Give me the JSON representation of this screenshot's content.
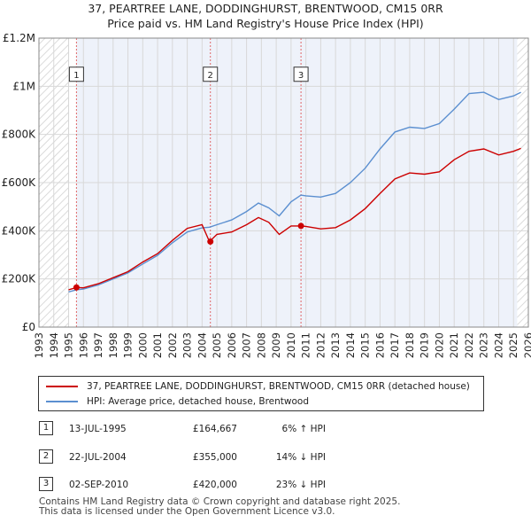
{
  "title_line1": "37, PEARTREE LANE, DODDINGHURST, BRENTWOOD, CM15 0RR",
  "title_line2": "Price paid vs. HM Land Registry's House Price Index (HPI)",
  "chart_data": {
    "type": "line",
    "xlim": [
      1993,
      2026
    ],
    "ylim": [
      0,
      1200000
    ],
    "y_ticks": [
      {
        "value": 0,
        "label": "£0"
      },
      {
        "value": 200000,
        "label": "£200K"
      },
      {
        "value": 400000,
        "label": "£400K"
      },
      {
        "value": 600000,
        "label": "£600K"
      },
      {
        "value": 800000,
        "label": "£800K"
      },
      {
        "value": 1000000,
        "label": "£1M"
      },
      {
        "value": 1200000,
        "label": "£1.2M"
      }
    ],
    "x_ticks": [
      "1993",
      "1994",
      "1995",
      "1996",
      "1997",
      "1998",
      "1999",
      "2000",
      "2001",
      "2002",
      "2003",
      "2004",
      "2005",
      "2006",
      "2007",
      "2008",
      "2009",
      "2010",
      "2011",
      "2012",
      "2013",
      "2014",
      "2015",
      "2016",
      "2017",
      "2018",
      "2019",
      "2020",
      "2021",
      "2022",
      "2023",
      "2024",
      "2025",
      "2026"
    ],
    "hatch_before": 1995.0,
    "hatch_after": 2025.25,
    "series": [
      {
        "name": "37, PEARTREE LANE, DODDINGHURST, BRENTWOOD, CM15 0RR (detached house)",
        "color": "#cc0000",
        "points": [
          [
            1995.0,
            155000
          ],
          [
            1995.53,
            164667
          ],
          [
            1996,
            163000
          ],
          [
            1997,
            180000
          ],
          [
            1998,
            205000
          ],
          [
            1999,
            230000
          ],
          [
            2000,
            270000
          ],
          [
            2001,
            305000
          ],
          [
            2002,
            360000
          ],
          [
            2003,
            410000
          ],
          [
            2004,
            425000
          ],
          [
            2004.5,
            355000
          ],
          [
            2005,
            385000
          ],
          [
            2006,
            395000
          ],
          [
            2007,
            425000
          ],
          [
            2007.8,
            455000
          ],
          [
            2008.5,
            435000
          ],
          [
            2009.2,
            385000
          ],
          [
            2010,
            420000
          ],
          [
            2010.67,
            420000
          ],
          [
            2011,
            418000
          ],
          [
            2012,
            408000
          ],
          [
            2013,
            413000
          ],
          [
            2014,
            445000
          ],
          [
            2015,
            492000
          ],
          [
            2016,
            555000
          ],
          [
            2017,
            615000
          ],
          [
            2018,
            640000
          ],
          [
            2019,
            635000
          ],
          [
            2020,
            645000
          ],
          [
            2021,
            695000
          ],
          [
            2022,
            730000
          ],
          [
            2023,
            740000
          ],
          [
            2024,
            715000
          ],
          [
            2025,
            730000
          ],
          [
            2025.5,
            742000
          ]
        ]
      },
      {
        "name": "HPI: Average price, detached house, Brentwood",
        "color": "#5b8fd0",
        "points": [
          [
            1995.0,
            146000
          ],
          [
            1995.53,
            155000
          ],
          [
            1996,
            158000
          ],
          [
            1997,
            175000
          ],
          [
            1998,
            200000
          ],
          [
            1999,
            225000
          ],
          [
            2000,
            262000
          ],
          [
            2001,
            298000
          ],
          [
            2002,
            350000
          ],
          [
            2003,
            395000
          ],
          [
            2004,
            412000
          ],
          [
            2004.5,
            415000
          ],
          [
            2005,
            425000
          ],
          [
            2006,
            445000
          ],
          [
            2007,
            480000
          ],
          [
            2007.8,
            515000
          ],
          [
            2008.5,
            495000
          ],
          [
            2009.2,
            462000
          ],
          [
            2010,
            520000
          ],
          [
            2010.67,
            548000
          ],
          [
            2011,
            545000
          ],
          [
            2012,
            540000
          ],
          [
            2013,
            555000
          ],
          [
            2014,
            600000
          ],
          [
            2015,
            660000
          ],
          [
            2016,
            740000
          ],
          [
            2017,
            810000
          ],
          [
            2018,
            830000
          ],
          [
            2019,
            825000
          ],
          [
            2020,
            845000
          ],
          [
            2021,
            905000
          ],
          [
            2022,
            970000
          ],
          [
            2023,
            975000
          ],
          [
            2024,
            945000
          ],
          [
            2025,
            960000
          ],
          [
            2025.5,
            975000
          ]
        ]
      }
    ],
    "sales": [
      {
        "id": "1",
        "x": 1995.53,
        "y": 164667
      },
      {
        "id": "2",
        "x": 2004.56,
        "y": 355000
      },
      {
        "id": "3",
        "x": 2010.67,
        "y": 420000
      }
    ],
    "marker_label_value": 1050000
  },
  "legend": {
    "property_label": "37, PEARTREE LANE, DODDINGHURST, BRENTWOOD, CM15 0RR (detached house)",
    "hpi_label": "HPI: Average price, detached house, Brentwood"
  },
  "transactions": [
    {
      "num": "1",
      "date": "13-JUL-1995",
      "price": "£164,667",
      "hpi": "6% ↑ HPI"
    },
    {
      "num": "2",
      "date": "22-JUL-2004",
      "price": "£355,000",
      "hpi": "14% ↓ HPI"
    },
    {
      "num": "3",
      "date": "02-SEP-2010",
      "price": "£420,000",
      "hpi": "23% ↓ HPI"
    }
  ],
  "footer": {
    "line1": "Contains HM Land Registry data © Crown copyright and database right 2025.",
    "line2": "This data is licensed under the Open Government Licence v3.0."
  }
}
